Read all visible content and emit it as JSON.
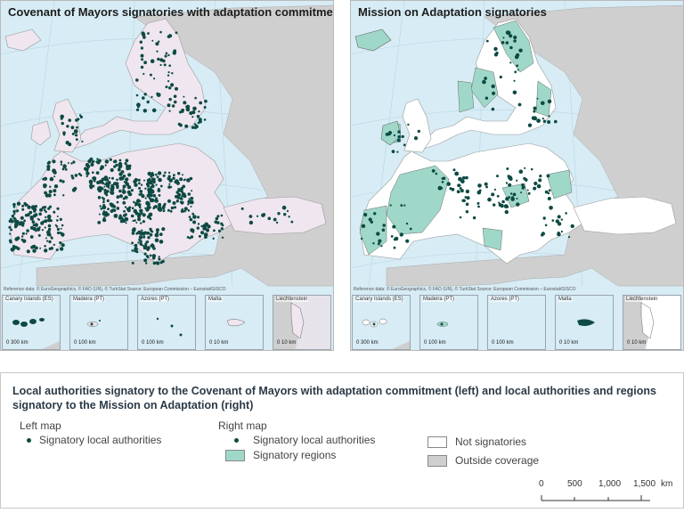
{
  "left_map": {
    "title": "Covenant of Mayors signatories with adaptation commitment",
    "reference": "Reference data: © EuroGeographics, © FAO (UN), © TurkStat Source: European Commission – Eurostat/GISCO"
  },
  "right_map": {
    "title": "Mission on Adaptation signatories",
    "reference": "Reference data: © EuroGeographics, © FAO (UN), © TurkStat Source: European Commission – Eurostat/GISCO"
  },
  "insets": [
    {
      "label": "Canary Islands (ES)",
      "scale": "0 300 km"
    },
    {
      "label": "Madeira (PT)",
      "scale": "0 100 km"
    },
    {
      "label": "Azores (PT)",
      "scale": "0 100 km"
    },
    {
      "label": "Malta",
      "scale": "0 10 km"
    },
    {
      "label": "Liechtenstein",
      "scale": "0 10 km"
    }
  ],
  "legend": {
    "title": "Local authorities signatory to the Covenant of Mayors with adaptation commitment (left) and local authorities and regions signatory to the Mission on Adaptation (right)",
    "left_map_heading": "Left map",
    "left_items": [
      "Signatory local authorities"
    ],
    "right_map_heading": "Right map",
    "right_items": [
      "Signatory local authorities",
      "Signatory regions"
    ],
    "other_items": [
      "Not signatories",
      "Outside coverage"
    ],
    "scale": {
      "ticks": [
        "0",
        "500",
        "1,000",
        "1,500"
      ],
      "unit": "km"
    }
  },
  "colors": {
    "sea": "#d7ecf5",
    "non_eu_land": "#cfcfcf",
    "left_land": "#efe6ef",
    "right_land": "#ffffff",
    "signatory_region": "#9fd8c9",
    "dot": "#0d4a43"
  }
}
